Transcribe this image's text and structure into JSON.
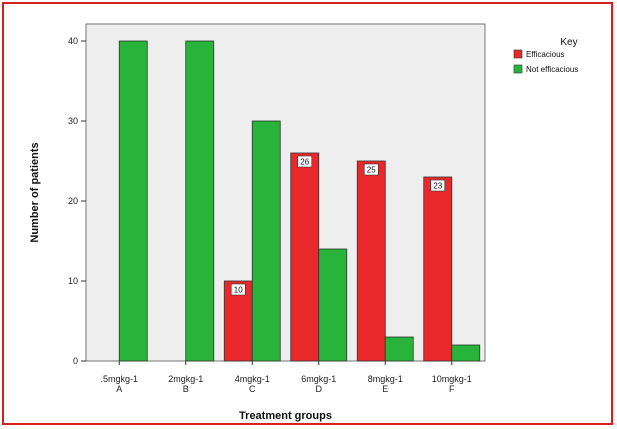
{
  "chart_data": {
    "type": "bar",
    "categories": [
      ".5mgkg-1",
      "2mgkg-1",
      "4mgkg-1",
      "6mgkg-1",
      "8mgkg-1",
      "10mgkg-1"
    ],
    "category_groups": [
      "A",
      "B",
      "C",
      "D",
      "E",
      "F"
    ],
    "series": [
      {
        "name": "Efficacious",
        "values": [
          0,
          0,
          10,
          26,
          25,
          23
        ],
        "color": "#e8282b",
        "data_labels": [
          "",
          "",
          "10",
          "26",
          "25",
          "23"
        ]
      },
      {
        "name": "Not efficacious",
        "values": [
          40,
          40,
          30,
          14,
          3,
          2
        ],
        "color": "#28b43a"
      }
    ],
    "xlabel": "Treatment groups",
    "ylabel": "Number of patients",
    "ylim": [
      0,
      40
    ],
    "yticks": [
      0,
      10,
      20,
      30,
      40
    ],
    "legend": {
      "title": "Key",
      "position": "top-right"
    },
    "grid": false,
    "plot_background": "#eeeeee",
    "frame_color": "#d62020"
  }
}
